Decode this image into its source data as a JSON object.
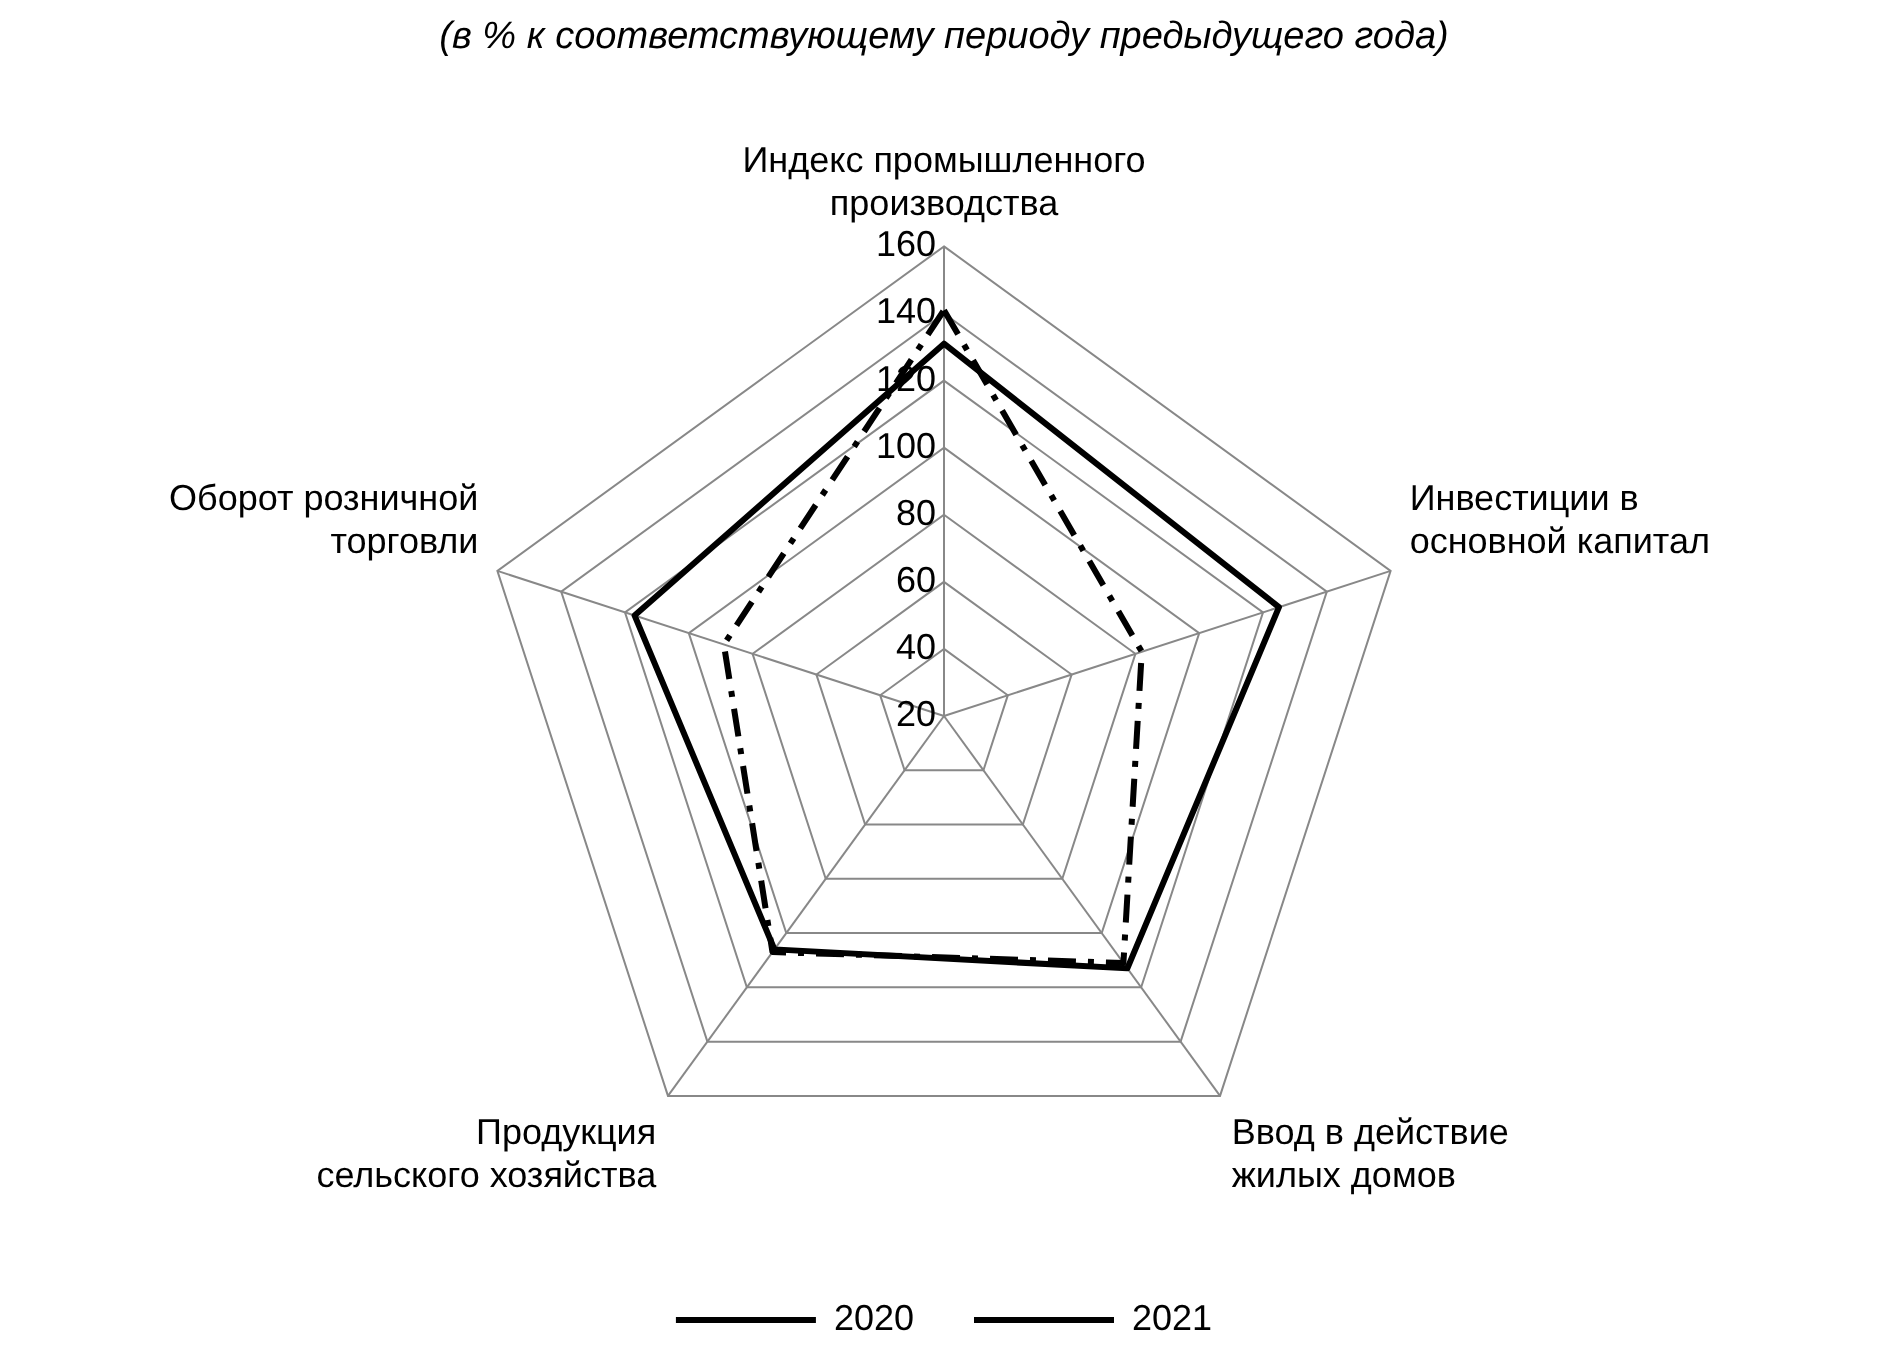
{
  "chart_data": {
    "type": "radar",
    "title": "(в % к соответствующему периоду предыдущего года)",
    "categories": [
      "Индекс промышленного производства",
      "Инвестиции в основной капитал",
      "Ввод в действие жилых домов",
      "Продукция сельского хозяйства",
      "Оборот розничной торговли"
    ],
    "series": [
      {
        "name": "2020",
        "color": "#000000",
        "line_style": "dashed",
        "values": [
          141,
          82,
          111,
          107,
          89
        ]
      },
      {
        "name": "2021",
        "color": "#000000",
        "line_style": "solid",
        "values": [
          131,
          125,
          113,
          106,
          117
        ]
      }
    ],
    "ylim": [
      20,
      160
    ],
    "yticks": [
      20,
      40,
      60,
      80,
      100,
      120,
      140,
      160
    ],
    "grid": true,
    "legend": "bottom",
    "marker": "none"
  }
}
